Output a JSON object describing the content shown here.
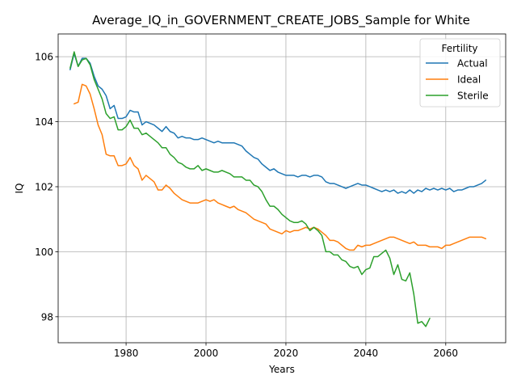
{
  "chart_data": {
    "type": "line",
    "title": "Average_IQ_in_GOVERNMENT_CREATE_JOBS_Sample for White",
    "xlabel": "Years",
    "ylabel": "IQ",
    "xlim": [
      1963,
      2075
    ],
    "ylim": [
      97.2,
      106.7
    ],
    "x_ticks": [
      1980,
      2000,
      2020,
      2040,
      2060
    ],
    "y_ticks": [
      98,
      100,
      102,
      104,
      106
    ],
    "grid": true,
    "legend": {
      "title": "Fertility",
      "placement": "top-right"
    },
    "series": [
      {
        "name": "Actual",
        "color": "#1f77b4",
        "points": [
          [
            1966,
            105.6
          ],
          [
            1967,
            106.1
          ],
          [
            1968,
            105.7
          ],
          [
            1969,
            105.95
          ],
          [
            1970,
            105.95
          ],
          [
            1971,
            105.8
          ],
          [
            1972,
            105.4
          ],
          [
            1973,
            105.1
          ],
          [
            1974,
            105.0
          ],
          [
            1975,
            104.8
          ],
          [
            1976,
            104.4
          ],
          [
            1977,
            104.5
          ],
          [
            1978,
            104.1
          ],
          [
            1979,
            104.1
          ],
          [
            1980,
            104.15
          ],
          [
            1981,
            104.35
          ],
          [
            1982,
            104.3
          ],
          [
            1983,
            104.3
          ],
          [
            1984,
            103.9
          ],
          [
            1985,
            104.0
          ],
          [
            1986,
            103.95
          ],
          [
            1987,
            103.9
          ],
          [
            1988,
            103.8
          ],
          [
            1989,
            103.7
          ],
          [
            1990,
            103.85
          ],
          [
            1991,
            103.7
          ],
          [
            1992,
            103.65
          ],
          [
            1993,
            103.5
          ],
          [
            1994,
            103.55
          ],
          [
            1995,
            103.5
          ],
          [
            1996,
            103.5
          ],
          [
            1997,
            103.45
          ],
          [
            1998,
            103.45
          ],
          [
            1999,
            103.5
          ],
          [
            2000,
            103.45
          ],
          [
            2001,
            103.4
          ],
          [
            2002,
            103.35
          ],
          [
            2003,
            103.4
          ],
          [
            2004,
            103.35
          ],
          [
            2005,
            103.35
          ],
          [
            2006,
            103.35
          ],
          [
            2007,
            103.35
          ],
          [
            2008,
            103.3
          ],
          [
            2009,
            103.25
          ],
          [
            2010,
            103.1
          ],
          [
            2011,
            103.0
          ],
          [
            2012,
            102.9
          ],
          [
            2013,
            102.85
          ],
          [
            2014,
            102.7
          ],
          [
            2015,
            102.6
          ],
          [
            2016,
            102.5
          ],
          [
            2017,
            102.55
          ],
          [
            2018,
            102.45
          ],
          [
            2019,
            102.4
          ],
          [
            2020,
            102.35
          ],
          [
            2021,
            102.35
          ],
          [
            2022,
            102.35
          ],
          [
            2023,
            102.3
          ],
          [
            2024,
            102.35
          ],
          [
            2025,
            102.35
          ],
          [
            2026,
            102.3
          ],
          [
            2027,
            102.35
          ],
          [
            2028,
            102.35
          ],
          [
            2029,
            102.3
          ],
          [
            2030,
            102.15
          ],
          [
            2031,
            102.1
          ],
          [
            2032,
            102.1
          ],
          [
            2033,
            102.05
          ],
          [
            2034,
            102.0
          ],
          [
            2035,
            101.95
          ],
          [
            2036,
            102.0
          ],
          [
            2037,
            102.05
          ],
          [
            2038,
            102.1
          ],
          [
            2039,
            102.05
          ],
          [
            2040,
            102.05
          ],
          [
            2041,
            102.0
          ],
          [
            2042,
            101.95
          ],
          [
            2043,
            101.9
          ],
          [
            2044,
            101.85
          ],
          [
            2045,
            101.9
          ],
          [
            2046,
            101.85
          ],
          [
            2047,
            101.9
          ],
          [
            2048,
            101.8
          ],
          [
            2049,
            101.85
          ],
          [
            2050,
            101.8
          ],
          [
            2051,
            101.9
          ],
          [
            2052,
            101.8
          ],
          [
            2053,
            101.9
          ],
          [
            2054,
            101.85
          ],
          [
            2055,
            101.95
          ],
          [
            2056,
            101.9
          ],
          [
            2057,
            101.95
          ],
          [
            2058,
            101.9
          ],
          [
            2059,
            101.95
          ],
          [
            2060,
            101.9
          ],
          [
            2061,
            101.95
          ],
          [
            2062,
            101.85
          ],
          [
            2063,
            101.9
          ],
          [
            2064,
            101.9
          ],
          [
            2065,
            101.95
          ],
          [
            2066,
            102.0
          ],
          [
            2067,
            102.0
          ],
          [
            2068,
            102.05
          ],
          [
            2069,
            102.1
          ],
          [
            2070,
            102.2
          ]
        ]
      },
      {
        "name": "Ideal",
        "color": "#ff7f0e",
        "points": [
          [
            1967,
            104.55
          ],
          [
            1968,
            104.6
          ],
          [
            1969,
            105.15
          ],
          [
            1970,
            105.1
          ],
          [
            1971,
            104.85
          ],
          [
            1972,
            104.4
          ],
          [
            1973,
            103.9
          ],
          [
            1974,
            103.6
          ],
          [
            1975,
            103.0
          ],
          [
            1976,
            102.95
          ],
          [
            1977,
            102.95
          ],
          [
            1978,
            102.65
          ],
          [
            1979,
            102.65
          ],
          [
            1980,
            102.7
          ],
          [
            1981,
            102.9
          ],
          [
            1982,
            102.65
          ],
          [
            1983,
            102.55
          ],
          [
            1984,
            102.2
          ],
          [
            1985,
            102.35
          ],
          [
            1986,
            102.25
          ],
          [
            1987,
            102.15
          ],
          [
            1988,
            101.9
          ],
          [
            1989,
            101.9
          ],
          [
            1990,
            102.05
          ],
          [
            1991,
            101.95
          ],
          [
            1992,
            101.8
          ],
          [
            1993,
            101.7
          ],
          [
            1994,
            101.6
          ],
          [
            1995,
            101.55
          ],
          [
            1996,
            101.5
          ],
          [
            1997,
            101.5
          ],
          [
            1998,
            101.5
          ],
          [
            1999,
            101.55
          ],
          [
            2000,
            101.6
          ],
          [
            2001,
            101.55
          ],
          [
            2002,
            101.6
          ],
          [
            2003,
            101.5
          ],
          [
            2004,
            101.45
          ],
          [
            2005,
            101.4
          ],
          [
            2006,
            101.35
          ],
          [
            2007,
            101.4
          ],
          [
            2008,
            101.3
          ],
          [
            2009,
            101.25
          ],
          [
            2010,
            101.2
          ],
          [
            2011,
            101.1
          ],
          [
            2012,
            101.0
          ],
          [
            2013,
            100.95
          ],
          [
            2014,
            100.9
          ],
          [
            2015,
            100.85
          ],
          [
            2016,
            100.7
          ],
          [
            2017,
            100.65
          ],
          [
            2018,
            100.6
          ],
          [
            2019,
            100.55
          ],
          [
            2020,
            100.65
          ],
          [
            2021,
            100.6
          ],
          [
            2022,
            100.65
          ],
          [
            2023,
            100.65
          ],
          [
            2024,
            100.7
          ],
          [
            2025,
            100.75
          ],
          [
            2026,
            100.7
          ],
          [
            2027,
            100.75
          ],
          [
            2028,
            100.7
          ],
          [
            2029,
            100.6
          ],
          [
            2030,
            100.5
          ],
          [
            2031,
            100.35
          ],
          [
            2032,
            100.35
          ],
          [
            2033,
            100.3
          ],
          [
            2034,
            100.2
          ],
          [
            2035,
            100.1
          ],
          [
            2036,
            100.05
          ],
          [
            2037,
            100.05
          ],
          [
            2038,
            100.2
          ],
          [
            2039,
            100.15
          ],
          [
            2040,
            100.2
          ],
          [
            2041,
            100.2
          ],
          [
            2042,
            100.25
          ],
          [
            2043,
            100.3
          ],
          [
            2044,
            100.35
          ],
          [
            2045,
            100.4
          ],
          [
            2046,
            100.45
          ],
          [
            2047,
            100.45
          ],
          [
            2048,
            100.4
          ],
          [
            2049,
            100.35
          ],
          [
            2050,
            100.3
          ],
          [
            2051,
            100.25
          ],
          [
            2052,
            100.3
          ],
          [
            2053,
            100.2
          ],
          [
            2054,
            100.2
          ],
          [
            2055,
            100.2
          ],
          [
            2056,
            100.15
          ],
          [
            2057,
            100.15
          ],
          [
            2058,
            100.15
          ],
          [
            2059,
            100.1
          ],
          [
            2060,
            100.2
          ],
          [
            2061,
            100.2
          ],
          [
            2062,
            100.25
          ],
          [
            2063,
            100.3
          ],
          [
            2064,
            100.35
          ],
          [
            2065,
            100.4
          ],
          [
            2066,
            100.45
          ],
          [
            2067,
            100.45
          ],
          [
            2068,
            100.45
          ],
          [
            2069,
            100.45
          ],
          [
            2070,
            100.4
          ]
        ]
      },
      {
        "name": "Sterile",
        "color": "#2ca02c",
        "points": [
          [
            1966,
            105.65
          ],
          [
            1967,
            106.15
          ],
          [
            1968,
            105.7
          ],
          [
            1969,
            105.9
          ],
          [
            1970,
            105.95
          ],
          [
            1971,
            105.75
          ],
          [
            1972,
            105.3
          ],
          [
            1973,
            105.0
          ],
          [
            1974,
            104.7
          ],
          [
            1975,
            104.25
          ],
          [
            1976,
            104.1
          ],
          [
            1977,
            104.15
          ],
          [
            1978,
            103.75
          ],
          [
            1979,
            103.75
          ],
          [
            1980,
            103.85
          ],
          [
            1981,
            104.05
          ],
          [
            1982,
            103.8
          ],
          [
            1983,
            103.8
          ],
          [
            1984,
            103.6
          ],
          [
            1985,
            103.65
          ],
          [
            1986,
            103.55
          ],
          [
            1987,
            103.45
          ],
          [
            1988,
            103.35
          ],
          [
            1989,
            103.2
          ],
          [
            1990,
            103.2
          ],
          [
            1991,
            103.0
          ],
          [
            1992,
            102.9
          ],
          [
            1993,
            102.75
          ],
          [
            1994,
            102.7
          ],
          [
            1995,
            102.6
          ],
          [
            1996,
            102.55
          ],
          [
            1997,
            102.55
          ],
          [
            1998,
            102.65
          ],
          [
            1999,
            102.5
          ],
          [
            2000,
            102.55
          ],
          [
            2001,
            102.5
          ],
          [
            2002,
            102.45
          ],
          [
            2003,
            102.45
          ],
          [
            2004,
            102.5
          ],
          [
            2005,
            102.45
          ],
          [
            2006,
            102.4
          ],
          [
            2007,
            102.3
          ],
          [
            2008,
            102.3
          ],
          [
            2009,
            102.3
          ],
          [
            2010,
            102.2
          ],
          [
            2011,
            102.2
          ],
          [
            2012,
            102.05
          ],
          [
            2013,
            102.0
          ],
          [
            2014,
            101.85
          ],
          [
            2015,
            101.6
          ],
          [
            2016,
            101.4
          ],
          [
            2017,
            101.4
          ],
          [
            2018,
            101.3
          ],
          [
            2019,
            101.15
          ],
          [
            2020,
            101.05
          ],
          [
            2021,
            100.95
          ],
          [
            2022,
            100.9
          ],
          [
            2023,
            100.9
          ],
          [
            2024,
            100.95
          ],
          [
            2025,
            100.85
          ],
          [
            2026,
            100.65
          ],
          [
            2027,
            100.75
          ],
          [
            2028,
            100.65
          ],
          [
            2029,
            100.5
          ],
          [
            2030,
            100.0
          ],
          [
            2031,
            100.0
          ],
          [
            2032,
            99.9
          ],
          [
            2033,
            99.9
          ],
          [
            2034,
            99.75
          ],
          [
            2035,
            99.7
          ],
          [
            2036,
            99.55
          ],
          [
            2037,
            99.5
          ],
          [
            2038,
            99.55
          ],
          [
            2039,
            99.3
          ],
          [
            2040,
            99.45
          ],
          [
            2041,
            99.5
          ],
          [
            2042,
            99.85
          ],
          [
            2043,
            99.85
          ],
          [
            2044,
            99.95
          ],
          [
            2045,
            100.05
          ],
          [
            2046,
            99.8
          ],
          [
            2047,
            99.3
          ],
          [
            2048,
            99.6
          ],
          [
            2049,
            99.15
          ],
          [
            2050,
            99.1
          ],
          [
            2051,
            99.35
          ],
          [
            2052,
            98.7
          ],
          [
            2053,
            97.8
          ],
          [
            2054,
            97.85
          ],
          [
            2055,
            97.7
          ],
          [
            2056,
            97.95
          ]
        ]
      }
    ]
  }
}
